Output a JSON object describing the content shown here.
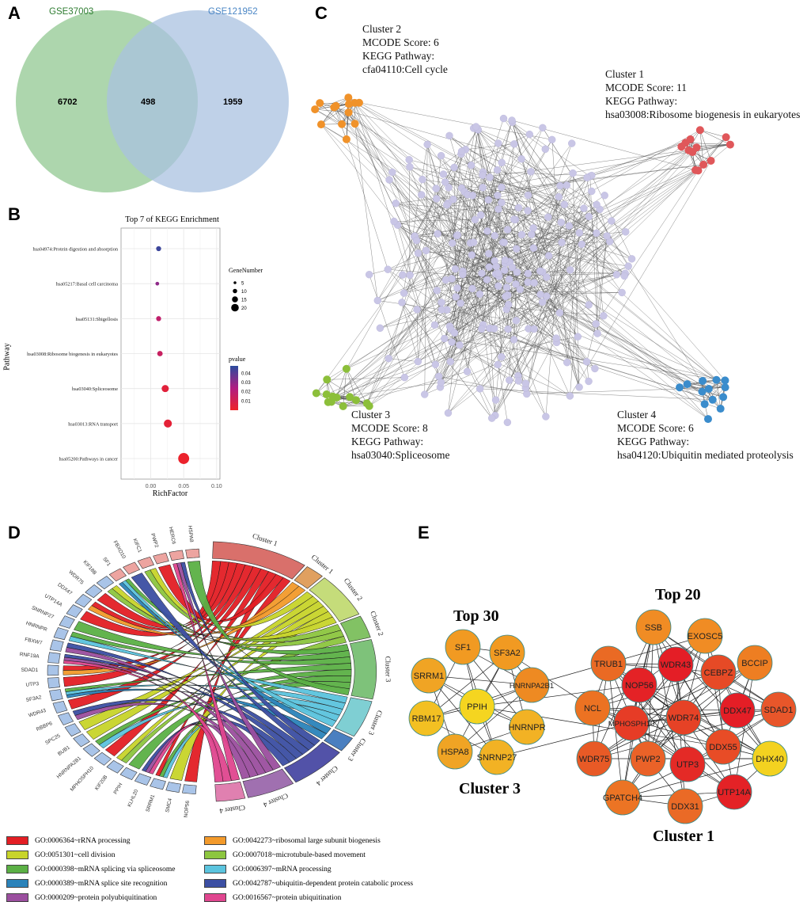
{
  "panels": {
    "a": "A",
    "b": "B",
    "c": "C",
    "d": "D",
    "e": "E"
  },
  "venn": {
    "set1": "GSE37003",
    "set2": "GSE121952",
    "only1": "6702",
    "both": "498",
    "only2": "1959",
    "color1": "#9fcf9f",
    "color2": "#a9c1e0"
  },
  "chart_data": {
    "type": "scatter",
    "title": "Top 7 of KEGG Enrichment",
    "xlabel": "RichFactor",
    "ylabel": "Pathway",
    "xlim": [
      -0.045,
      0.105
    ],
    "xticks": [
      "0.00",
      "0.05",
      "0.10"
    ],
    "xtick_values": [
      0,
      0.05,
      0.1
    ],
    "categories": [
      "hsa04974:Protein digestion and absorption",
      "hsa05217:Basal cell carcinoma",
      "hsa05131:Shigellosis",
      "hsa03008:Ribosome biogenesis in eukaryotes",
      "hsa03040:Spliceosome",
      "hsa03013:RNA transport",
      "hsa05200:Pathways in cancer"
    ],
    "richfactor": [
      0.012,
      0.01,
      0.012,
      0.014,
      0.022,
      0.026,
      0.05
    ],
    "gene_number": [
      8,
      5,
      8,
      9,
      13,
      15,
      22
    ],
    "pvalue": [
      0.045,
      0.03,
      0.018,
      0.015,
      0.005,
      0.004,
      0.001
    ],
    "size_legend": {
      "title": "GeneNumber",
      "values": [
        5,
        10,
        15,
        20
      ]
    },
    "color_legend": {
      "title": "pvalue",
      "ticks": [
        "0.04",
        "0.03",
        "0.02",
        "0.01"
      ],
      "tick_values": [
        0.04,
        0.03,
        0.02,
        0.01
      ],
      "range": [
        0,
        0.048
      ],
      "low_color": "#ee2228",
      "mid_color": "#b01e82",
      "high_color": "#2b4c9e"
    },
    "grid": true
  },
  "network_c": {
    "clusters": [
      {
        "line1": "Cluster 2",
        "line2": "MCODE Score: 6",
        "line3": "KEGG Pathway:",
        "line4": "cfa04110:Cell cycle",
        "color": "#f0922a"
      },
      {
        "line1": "Cluster 1",
        "line2": "MCODE Score: 11",
        "line3": "KEGG Pathway:",
        "line4": "hsa03008:Ribosome biogenesis in eukaryotes",
        "color": "#e0575a"
      },
      {
        "line1": "Cluster 3",
        "line2": "MCODE Score: 8",
        "line3": "KEGG Pathway:",
        "line4": "hsa03040:Spliceosome",
        "color": "#8cbf3a"
      },
      {
        "line1": "Cluster 4",
        "line2": "MCODE Score: 6",
        "line3": "KEGG Pathway:",
        "line4": "hsa04120:Ubiquitin mediated proteolysis",
        "color": "#3a8ccc"
      }
    ],
    "node_color": "#c9c6e6"
  },
  "chord": {
    "genes": [
      "HSPA8",
      "HERC6",
      "PWP2",
      "KIFC1",
      "FBXO10",
      "SF1",
      "KIF18B",
      "WDR75",
      "DDX47",
      "UTP14A",
      "SNRNP27",
      "HNRNPR",
      "FBXW7",
      "RNF19A",
      "SDAD1",
      "UTP3",
      "SF3A2",
      "WDR43",
      "RBBP6",
      "SPC25",
      "BUB1",
      "HNRNPA2B1",
      "MPHOSPH10",
      "KIF20B",
      "PPIH",
      "KLHL20",
      "SRRM1",
      "SMC4",
      "NOP56"
    ],
    "clusters": [
      "Cluster 1",
      "Cluster 1",
      "Cluster 2",
      "Cluster 2",
      "Cluster 3",
      "Cluster 3",
      "Cluster 3",
      "Cluster 4",
      "Cluster 4",
      "Cluster 4"
    ],
    "cluster_colors": [
      "#d9706b",
      "#e0a060",
      "#c5dc7a",
      "#82c264",
      "#7ec27a",
      "#7fcfd3",
      "#4a7fc0",
      "#5252a8",
      "#a070b0",
      "#e080b0"
    ],
    "terms": [
      {
        "label": "GO:0006364~rRNA processing",
        "color": "#e31e24"
      },
      {
        "label": "GO:0042273~ribosomal large subunit biogenesis",
        "color": "#f39a2b"
      },
      {
        "label": "GO:0051301~cell division",
        "color": "#c8d42a"
      },
      {
        "label": "GO:0007018~microtubule-based movement",
        "color": "#8dc63f"
      },
      {
        "label": "GO:0000398~mRNA splicing via spliceosome",
        "color": "#5bb045"
      },
      {
        "label": "GO:0006397~mRNA processing",
        "color": "#5bc4de"
      },
      {
        "label": "GO:0000389~mRNA splice site recognition",
        "color": "#2b83ba"
      },
      {
        "label": "GO:0042787~ubiquitin-dependent protein catabolic process",
        "color": "#3c4fa3"
      },
      {
        "label": "GO:0000209~protein polyubiquitination",
        "color": "#9b4f9f"
      },
      {
        "label": "GO:0016567~protein ubiquitination",
        "color": "#e0468f"
      }
    ],
    "links": [
      [
        7,
        0
      ],
      [
        8,
        0
      ],
      [
        9,
        0
      ],
      [
        14,
        0
      ],
      [
        15,
        0
      ],
      [
        17,
        0
      ],
      [
        22,
        0
      ],
      [
        28,
        0
      ],
      [
        2,
        0
      ],
      [
        26,
        0
      ],
      [
        14,
        1
      ],
      [
        8,
        1
      ],
      [
        3,
        2
      ],
      [
        19,
        2
      ],
      [
        20,
        2
      ],
      [
        23,
        2
      ],
      [
        27,
        2
      ],
      [
        6,
        2
      ],
      [
        3,
        3
      ],
      [
        6,
        3
      ],
      [
        23,
        3
      ],
      [
        5,
        4
      ],
      [
        10,
        4
      ],
      [
        11,
        4
      ],
      [
        16,
        4
      ],
      [
        21,
        4
      ],
      [
        24,
        4
      ],
      [
        26,
        4
      ],
      [
        0,
        4
      ],
      [
        11,
        5
      ],
      [
        16,
        5
      ],
      [
        21,
        5
      ],
      [
        26,
        5
      ],
      [
        5,
        5
      ],
      [
        5,
        6
      ],
      [
        16,
        6
      ],
      [
        1,
        7
      ],
      [
        4,
        7
      ],
      [
        12,
        7
      ],
      [
        13,
        7
      ],
      [
        18,
        7
      ],
      [
        25,
        7
      ],
      [
        1,
        8
      ],
      [
        12,
        8
      ],
      [
        13,
        8
      ],
      [
        18,
        8
      ],
      [
        25,
        8
      ],
      [
        1,
        9
      ],
      [
        13,
        9
      ],
      [
        25,
        9
      ]
    ]
  },
  "network_e": {
    "labels": {
      "top30": "Top 30",
      "top20": "Top 20",
      "cluster3": "Cluster 3",
      "cluster1": "Cluster 1"
    },
    "nodes": [
      {
        "name": "SF1",
        "color": "#f19a22",
        "g": 0
      },
      {
        "name": "SF3A2",
        "color": "#f19a22",
        "g": 0
      },
      {
        "name": "SRRM1",
        "color": "#f0a424",
        "g": 0
      },
      {
        "name": "HNRNPA2B1",
        "color": "#ee8a22",
        "g": 0
      },
      {
        "name": "PPIH",
        "color": "#f5d520",
        "g": 0
      },
      {
        "name": "RBM17",
        "color": "#f3c022",
        "g": 0
      },
      {
        "name": "HNRNPR",
        "color": "#f2b224",
        "g": 0
      },
      {
        "name": "HSPA8",
        "color": "#f0a424",
        "g": 0
      },
      {
        "name": "SNRNP27",
        "color": "#f2b224",
        "g": 0
      },
      {
        "name": "SSB",
        "color": "#f08c24",
        "g": 1
      },
      {
        "name": "EXOSC5",
        "color": "#f08c24",
        "g": 1
      },
      {
        "name": "TRUB1",
        "color": "#ea6a24",
        "g": 1
      },
      {
        "name": "WDR43",
        "color": "#e41e26",
        "g": 1
      },
      {
        "name": "CEBPZ",
        "color": "#e64a26",
        "g": 1
      },
      {
        "name": "BCCIP",
        "color": "#ee7e22",
        "g": 1
      },
      {
        "name": "NOP56",
        "color": "#e42226",
        "g": 1
      },
      {
        "name": "NCL",
        "color": "#ec7222",
        "g": 1
      },
      {
        "name": "MPHOSPH10",
        "color": "#e63c26",
        "g": 1
      },
      {
        "name": "WDR74",
        "color": "#e64226",
        "g": 1
      },
      {
        "name": "DDX47",
        "color": "#e41e26",
        "g": 1
      },
      {
        "name": "SDAD1",
        "color": "#e8562a",
        "g": 1
      },
      {
        "name": "DDX55",
        "color": "#e84c26",
        "g": 1
      },
      {
        "name": "DHX40",
        "color": "#f3d220",
        "g": 1
      },
      {
        "name": "WDR75",
        "color": "#e85a26",
        "g": 1
      },
      {
        "name": "PWP2",
        "color": "#ea6228",
        "g": 1
      },
      {
        "name": "UTP3",
        "color": "#e42a26",
        "g": 1
      },
      {
        "name": "UTP14A",
        "color": "#e42226",
        "g": 1
      },
      {
        "name": "GPATCH4",
        "color": "#ec7424",
        "g": 1
      },
      {
        "name": "DDX31",
        "color": "#ea6a26",
        "g": 1
      }
    ]
  }
}
